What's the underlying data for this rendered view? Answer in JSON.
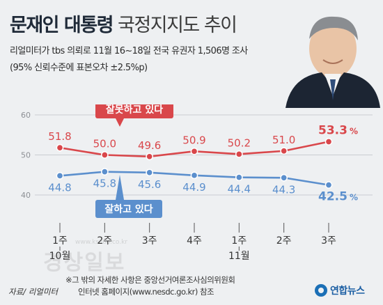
{
  "header": {
    "title_strong": "문재인 대통령",
    "title_light": "국정지지도 추이",
    "survey_line1": "리얼미터가 tbs 의뢰로 11월 16~18일 전국 유권자 1,506명 조사",
    "survey_line2": "(95% 신뢰수준에 표본오차 ±2.5%p)"
  },
  "watermark": {
    "text": "경상일보",
    "sub": "www.ksilbo.co.kr"
  },
  "footer": {
    "note1": "※그 밖의 자세한 사항은 중앙선거여론조사심의위원회",
    "note2": "인터넷 홈페이지(www.nesdc.go.kr) 참조",
    "source": "자료/ 리얼미터",
    "brand": "연합뉴스"
  },
  "colors": {
    "negative": "#d9474b",
    "positive": "#5b8fcd",
    "grid": "#c9ccd1",
    "negative_label_bg": "#d9474b",
    "positive_label_bg": "#5b8fcd"
  },
  "chart_data": {
    "type": "line",
    "categories": [
      "1주",
      "2주",
      "3주",
      "4주",
      "1주",
      "2주",
      "3주"
    ],
    "month_labels": [
      {
        "label": "10월",
        "under_index": 0
      },
      {
        "label": "11월",
        "under_index": 4
      }
    ],
    "y_ticks": [
      40,
      50,
      60
    ],
    "ylim": [
      40,
      60
    ],
    "unit": "%",
    "series": [
      {
        "name": "잘못하고 있다",
        "color": "#d9474b",
        "values": [
          51.8,
          50.0,
          49.6,
          50.9,
          50.2,
          51.0,
          53.3
        ],
        "labels": [
          "51.8",
          "50.0",
          "49.6",
          "50.9",
          "50.2",
          "51.0",
          "53.3"
        ]
      },
      {
        "name": "잘하고 있다",
        "color": "#5b8fcd",
        "values": [
          44.8,
          45.8,
          45.6,
          44.9,
          44.4,
          44.3,
          42.5
        ],
        "labels": [
          "44.8",
          "45.8",
          "45.6",
          "44.9",
          "44.4",
          "44.3",
          "42.5"
        ]
      }
    ]
  }
}
